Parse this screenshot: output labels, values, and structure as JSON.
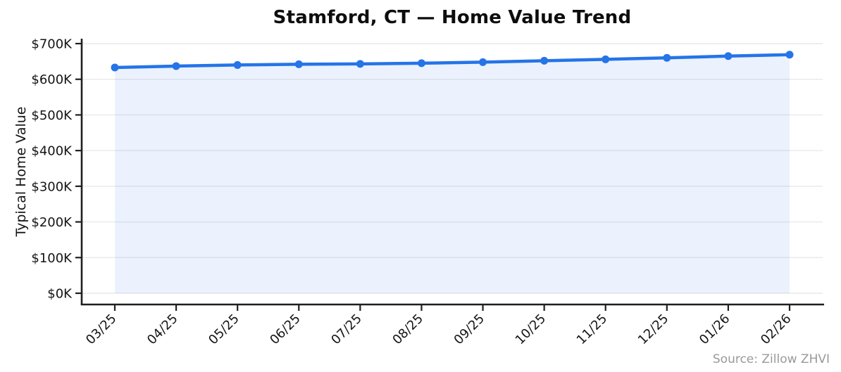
{
  "figure": {
    "background": "#ffffff"
  },
  "chart_data": {
    "type": "line",
    "title": "Stamford, CT — Home Value Trend",
    "xlabel": "",
    "ylabel": "Typical Home Value",
    "source_note": "Source: Zillow ZHVI",
    "x": [
      "03/25",
      "04/25",
      "05/25",
      "06/25",
      "07/25",
      "08/25",
      "09/25",
      "10/25",
      "11/25",
      "12/25",
      "01/26",
      "02/26"
    ],
    "series": [
      {
        "name": "Typical Home Value",
        "unit": "USD thousands",
        "values": [
          633,
          637,
          640,
          642,
          643,
          645,
          648,
          652,
          656,
          660,
          665,
          669
        ]
      }
    ],
    "ylim": [
      0,
      700
    ],
    "yticks": [
      0,
      100,
      200,
      300,
      400,
      500,
      600,
      700
    ],
    "ytick_labels": [
      "$0K",
      "$100K",
      "$200K",
      "$300K",
      "$400K",
      "$500K",
      "$600K",
      "$700K"
    ],
    "xtick_rotation_deg": 45,
    "grid": "horizontal",
    "legend": "none",
    "area_fill": true,
    "marker": "circle",
    "colors": {
      "line": "#2574e8",
      "marker": "#2574e8",
      "area_fill": "rgba(37,116,232,0.09)",
      "gridline": "#e9e9e9",
      "spine": "#1f1f1f",
      "tick_label": "#141414",
      "title": "#0d0d0d",
      "source_note": "#9a9a9a"
    }
  }
}
